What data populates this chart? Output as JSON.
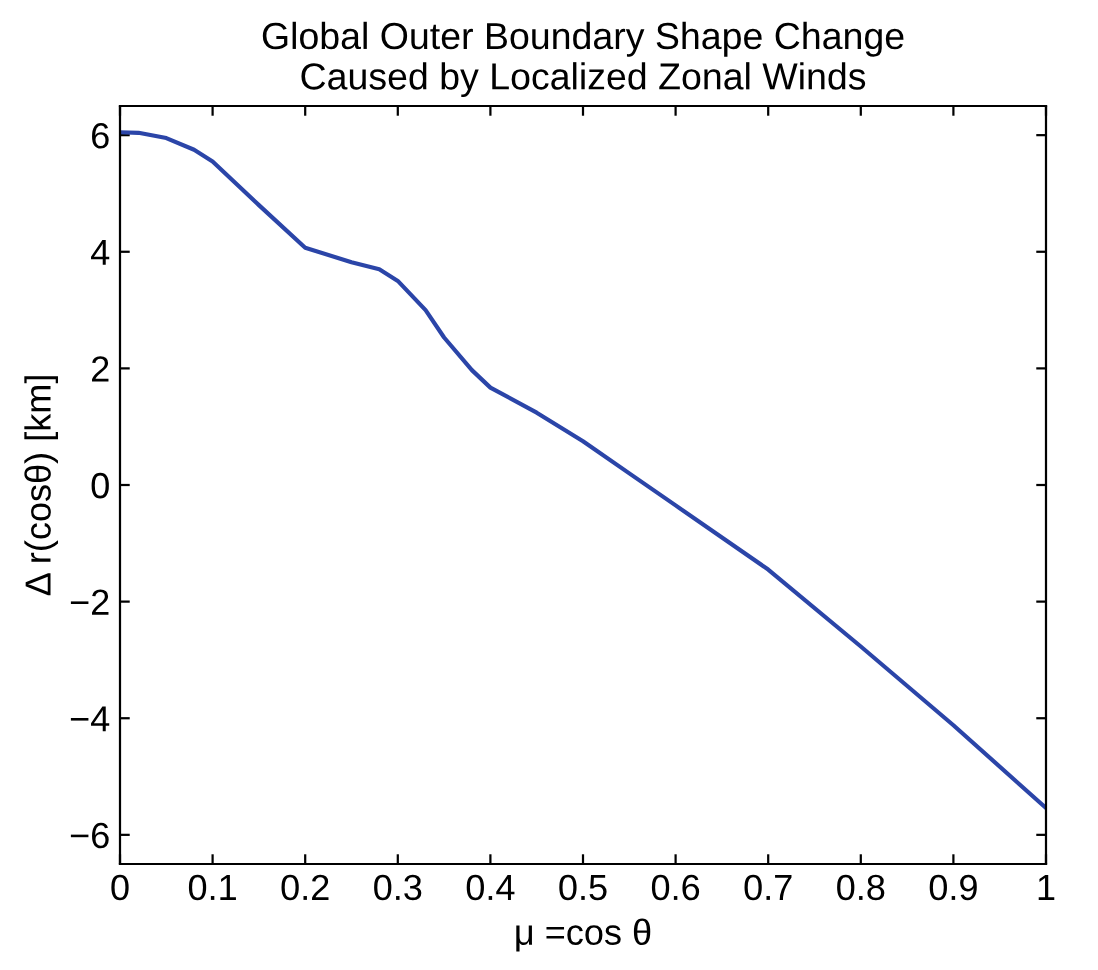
{
  "chart_data": {
    "type": "line",
    "title": "Global Outer Boundary Shape Change\nCaused by Localized Zonal Winds",
    "xlabel": "μ =cos θ",
    "ylabel": "Δ r(cosθ) [km]",
    "series": [
      {
        "color": "#2b45a8",
        "x": [
          0,
          0.02,
          0.05,
          0.08,
          0.1,
          0.15,
          0.2,
          0.25,
          0.28,
          0.3,
          0.33,
          0.35,
          0.38,
          0.4,
          0.45,
          0.5,
          0.55,
          0.6,
          0.7,
          0.8,
          0.9,
          1.0
        ],
        "values": [
          6.05,
          6.04,
          5.95,
          5.75,
          5.55,
          4.8,
          4.07,
          3.82,
          3.7,
          3.5,
          3.0,
          2.53,
          1.97,
          1.67,
          1.24,
          0.75,
          0.2,
          -0.35,
          -1.45,
          -2.77,
          -4.12,
          -5.54
        ]
      }
    ],
    "xlim": [
      0,
      1
    ],
    "xticks": [
      0,
      0.1,
      0.2,
      0.3,
      0.4,
      0.5,
      0.6,
      0.7,
      0.8,
      0.9,
      1
    ],
    "ylim": [
      -6.5,
      6.5
    ],
    "yticks": [
      -6,
      -4,
      -2,
      0,
      2,
      4,
      6
    ],
    "grid": false,
    "legend": false
  }
}
